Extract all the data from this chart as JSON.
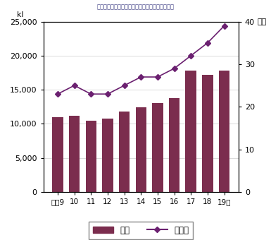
{
  "categories": [
    "平成9",
    "10",
    "11",
    "12",
    "13",
    "14",
    "15",
    "16",
    "17",
    "18",
    "19年"
  ],
  "bar_values": [
    11000,
    11200,
    10500,
    10800,
    11800,
    12400,
    13000,
    13800,
    17800,
    17200,
    17800
  ],
  "line_values": [
    23,
    25,
    23,
    23,
    25,
    27,
    27,
    29,
    32,
    35,
    39
  ],
  "bar_color": "#7b2d4e",
  "line_color": "#6b2070",
  "marker_color": "#6b2070",
  "bar_label": "数量",
  "line_label": "輸出額",
  "ylabel_left": "kl",
  "ylabel_right": "億円",
  "ylim_left": [
    0,
    25000
  ],
  "ylim_right": [
    0,
    40
  ],
  "yticks_left": [
    0,
    5000,
    10000,
    15000,
    20000,
    25000
  ],
  "yticks_right": [
    0,
    10,
    20,
    30,
    40
  ],
  "background_color": "#ffffff",
  "grid_color": "#cccccc",
  "title": "全国レベルでのしょう油の輸出量及び輸出額推移"
}
